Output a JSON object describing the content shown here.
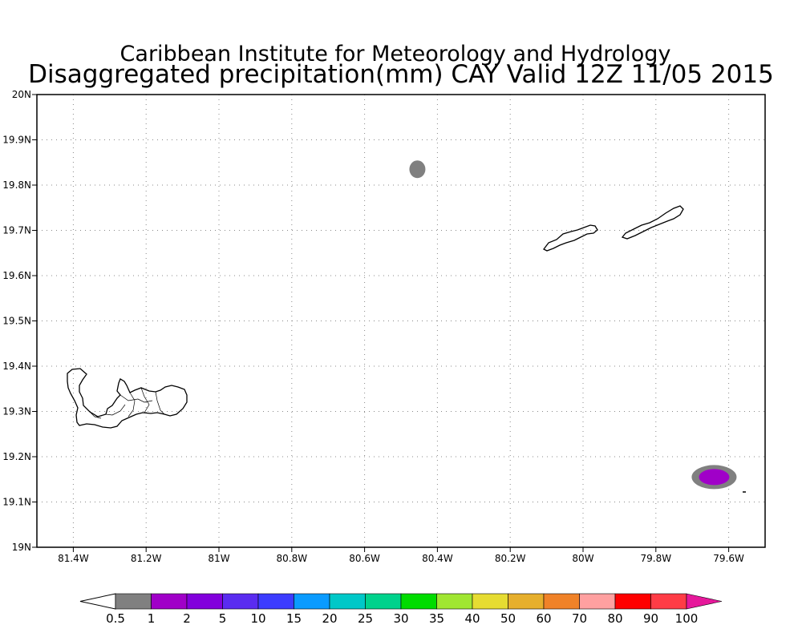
{
  "title": {
    "line1": "Caribbean Institute for Meteorology and Hydrology",
    "line2": "Disaggregated precipitation(mm) CAY Valid 12Z 11/05 2015"
  },
  "map": {
    "lon_range": [
      -81.5,
      -79.5
    ],
    "lat_range": [
      19.0,
      20.0
    ],
    "grid": "dotted",
    "x_ticks": [
      {
        "lon": -81.4,
        "label": "81.4W"
      },
      {
        "lon": -81.2,
        "label": "81.2W"
      },
      {
        "lon": -81.0,
        "label": "81W"
      },
      {
        "lon": -80.8,
        "label": "80.8W"
      },
      {
        "lon": -80.6,
        "label": "80.6W"
      },
      {
        "lon": -80.4,
        "label": "80.4W"
      },
      {
        "lon": -80.2,
        "label": "80.2W"
      },
      {
        "lon": -80.0,
        "label": "80W"
      },
      {
        "lon": -79.8,
        "label": "79.8W"
      },
      {
        "lon": -79.6,
        "label": "79.6W"
      }
    ],
    "y_ticks": [
      {
        "lat": 20.0,
        "label": "20N"
      },
      {
        "lat": 19.9,
        "label": "19.9N"
      },
      {
        "lat": 19.8,
        "label": "19.8N"
      },
      {
        "lat": 19.7,
        "label": "19.7N"
      },
      {
        "lat": 19.6,
        "label": "19.6N"
      },
      {
        "lat": 19.5,
        "label": "19.5N"
      },
      {
        "lat": 19.4,
        "label": "19.4N"
      },
      {
        "lat": 19.3,
        "label": "19.3N"
      },
      {
        "lat": 19.2,
        "label": "19.2N"
      },
      {
        "lat": 19.1,
        "label": "19.1N"
      },
      {
        "lat": 19.0,
        "label": "19N"
      }
    ]
  },
  "colorbar": {
    "labels": [
      "0.5",
      "1",
      "2",
      "5",
      "10",
      "15",
      "20",
      "25",
      "30",
      "35",
      "40",
      "50",
      "60",
      "70",
      "80",
      "90",
      "100"
    ],
    "colors": [
      "#ffffff",
      "#808080",
      "#a000c8",
      "#8200dc",
      "#5a2cf0",
      "#3c3cff",
      "#0a9bff",
      "#00c8c8",
      "#00d28c",
      "#00dc00",
      "#a0e632",
      "#e6dc32",
      "#e6af2d",
      "#f08228",
      "#ffa0a0",
      "#ff0000",
      "#ff3c46",
      "#e6189b"
    ]
  },
  "precip_cells": [
    {
      "name": "cell-north",
      "lon": -80.455,
      "lat": 19.835,
      "color": "#808080"
    },
    {
      "name": "cell-southeast-outer",
      "lon": -79.64,
      "lat": 19.155,
      "color": "#808080"
    },
    {
      "name": "cell-southeast-inner",
      "lon": -79.64,
      "lat": 19.155,
      "color": "#a000c8"
    }
  ]
}
